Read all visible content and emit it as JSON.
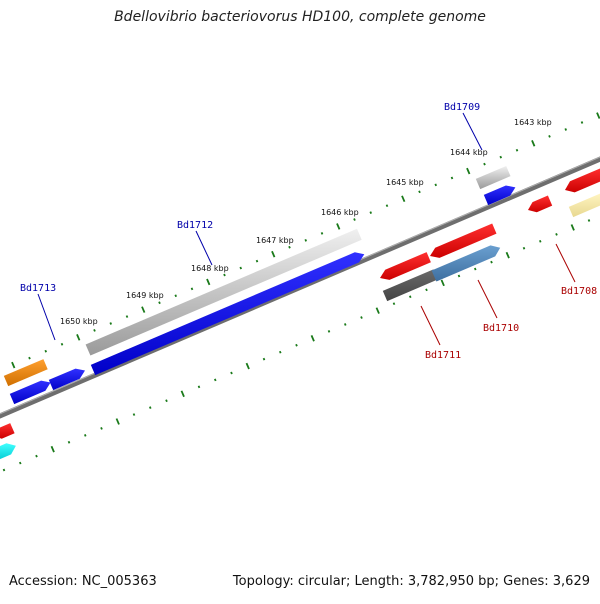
{
  "title": "Bdellovibrio bacteriovorus HD100, complete genome",
  "accession": "Accession: NC_005363",
  "topology": "Topology: circular; Length: 3,782,950 bp; Genes: 3,629",
  "colors": {
    "tick": "#1a7a1a",
    "backbone": "#808080",
    "label_forward": "#0000aa",
    "label_reverse": "#aa0000"
  },
  "kbp_labels": [
    "1643 kbp",
    "1644 kbp",
    "1645 kbp",
    "1646 kbp",
    "1647 kbp",
    "1648 kbp",
    "1649 kbp",
    "1650 kbp"
  ],
  "gene_labels": [
    "Bd1709",
    "Bd1712",
    "Bd1713",
    "Bd1708",
    "Bd1710",
    "Bd1711"
  ]
}
